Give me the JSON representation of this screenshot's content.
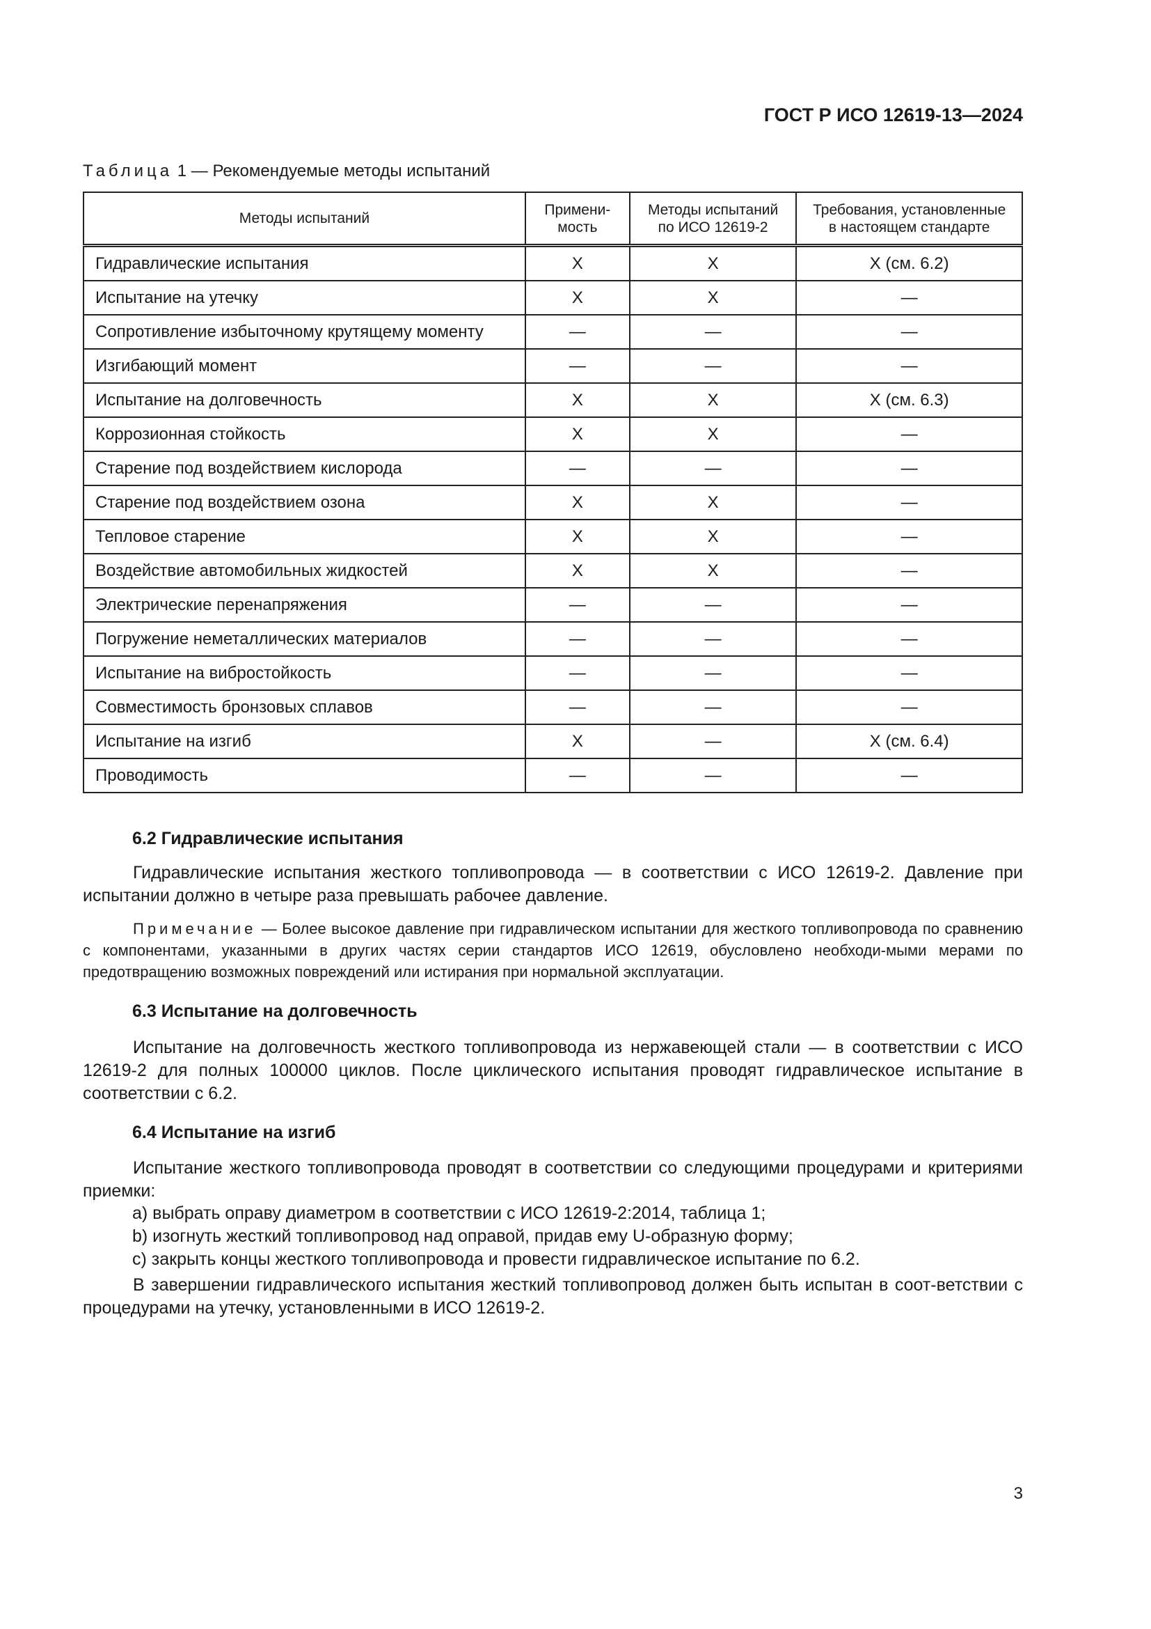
{
  "header": {
    "doc_id": "ГОСТ Р ИСО 12619-13—2024"
  },
  "table": {
    "caption_label": "Таблица",
    "caption_text": " 1 — Рекомендуемые методы испытаний",
    "columns": [
      "Методы испытаний",
      "Примени-\nмость",
      "Методы испытаний\nпо ИСО 12619-2",
      "Требования, установленные\nв настоящем стандарте"
    ],
    "rows": [
      [
        "Гидравлические испытания",
        "X",
        "X",
        "X (см. 6.2)"
      ],
      [
        "Испытание на утечку",
        "X",
        "X",
        "—"
      ],
      [
        "Сопротивление избыточному крутящему моменту",
        "—",
        "—",
        "—"
      ],
      [
        "Изгибающий момент",
        "—",
        "—",
        "—"
      ],
      [
        "Испытание на долговечность",
        "X",
        "X",
        "X (см. 6.3)"
      ],
      [
        "Коррозионная стойкость",
        "X",
        "X",
        "—"
      ],
      [
        "Старение под воздействием кислорода",
        "—",
        "—",
        "—"
      ],
      [
        "Старение под воздействием озона",
        "X",
        "X",
        "—"
      ],
      [
        "Тепловое старение",
        "X",
        "X",
        "—"
      ],
      [
        "Воздействие автомобильных жидкостей",
        "X",
        "X",
        "—"
      ],
      [
        "Электрические перенапряжения",
        "—",
        "—",
        "—"
      ],
      [
        "Погружение неметаллических материалов",
        "—",
        "—",
        "—"
      ],
      [
        "Испытание на вибростойкость",
        "—",
        "—",
        "—"
      ],
      [
        "Совместимость бронзовых сплавов",
        "—",
        "—",
        "—"
      ],
      [
        "Испытание на изгиб",
        "X",
        "—",
        "X (см. 6.4)"
      ],
      [
        "Проводимость",
        "—",
        "—",
        "—"
      ]
    ]
  },
  "s62": {
    "heading": "6.2  Гидравлические испытания",
    "para": "Гидравлические испытания жесткого топливопровода — в соответствии с ИСО 12619-2. Давление при испытании должно в четыре раза превышать рабочее давление.",
    "note_label": "Примечание",
    "note_text": " — Более высокое давление при гидравлическом испытании для жесткого топливопровода по сравнению с компонентами, указанными в других частях серии стандартов ИСО 12619, обусловлено необходи-мыми мерами по предотвращению возможных повреждений или истирания при нормальной эксплуатации."
  },
  "s63": {
    "heading": "6.3  Испытание на долговечность",
    "para": "Испытание на долговечность жесткого топливопровода из нержавеющей стали — в соответствии с ИСО 12619-2 для полных 100000 циклов. После циклического испытания проводят гидравлическое испытание в соответствии с 6.2."
  },
  "s64": {
    "heading": "6.4  Испытание на изгиб",
    "para": "Испытание жесткого топливопровода проводят в соответствии со следующими процедурами и критериями приемки:",
    "items": [
      "a)  выбрать оправу диаметром в соответствии с ИСО 12619-2:2014, таблица 1;",
      "b)  изогнуть жесткий топливопровод над оправой, придав ему U-образную форму;",
      "c)  закрыть концы жесткого топливопровода и провести гидравлическое испытание по 6.2."
    ],
    "final": "В завершении гидравлического испытания жесткий топливопровод должен быть испытан в соот-ветствии с процедурами на утечку, установленными в ИСО 12619-2."
  },
  "page_number": "3"
}
